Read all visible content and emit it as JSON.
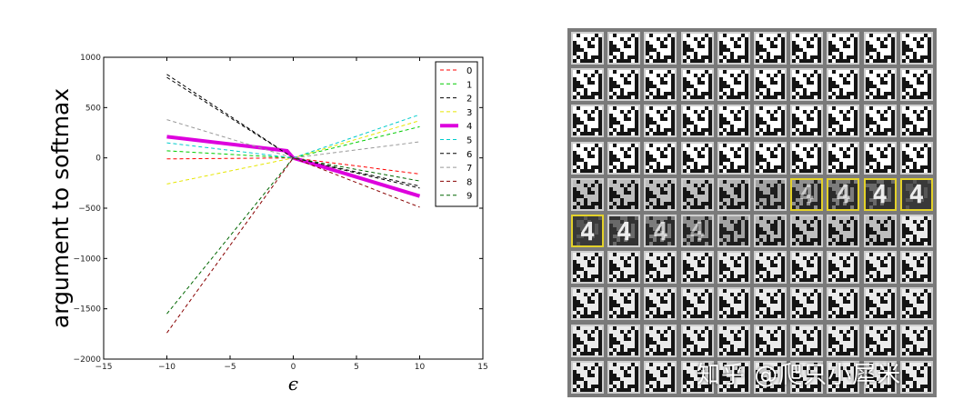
{
  "chart_data": {
    "type": "line",
    "xlabel": "ϵ",
    "ylabel": "argument to softmax",
    "xlim": [
      -15,
      15
    ],
    "ylim": [
      -2000,
      1000
    ],
    "xticks": [
      "−15",
      "−10",
      "−5",
      "0",
      "5",
      "10",
      "15"
    ],
    "yticks": [
      "1000",
      "500",
      "0",
      "−500",
      "−1000",
      "−1500",
      "−2000"
    ],
    "legend_placement": "top-right",
    "series": [
      {
        "name": "0",
        "color": "#ff0000",
        "x": [
          -10,
          0,
          10
        ],
        "y": [
          -10,
          0,
          -160
        ]
      },
      {
        "name": "1",
        "color": "#00cc00",
        "x": [
          -10,
          0,
          10
        ],
        "y": [
          70,
          0,
          310
        ]
      },
      {
        "name": "2",
        "color": "#000000",
        "x": [
          -10,
          0,
          10
        ],
        "y": [
          830,
          0,
          -300
        ]
      },
      {
        "name": "3",
        "color": "#e6e600",
        "x": [
          -10,
          0,
          10
        ],
        "y": [
          -260,
          0,
          370
        ]
      },
      {
        "name": "4",
        "color": "#dd00dd",
        "x": [
          -10,
          -0.5,
          0,
          10
        ],
        "y": [
          210,
          70,
          0,
          -380
        ]
      },
      {
        "name": "5",
        "color": "#00cccc",
        "x": [
          -10,
          0,
          10
        ],
        "y": [
          150,
          0,
          430
        ]
      },
      {
        "name": "6",
        "color": "#000000",
        "x": [
          -10,
          0,
          10
        ],
        "y": [
          800,
          0,
          -280
        ]
      },
      {
        "name": "7",
        "color": "#999999",
        "x": [
          -10,
          0,
          10
        ],
        "y": [
          380,
          0,
          160
        ]
      },
      {
        "name": "8",
        "color": "#880000",
        "x": [
          -10,
          0,
          10
        ],
        "y": [
          -1740,
          0,
          -490
        ]
      },
      {
        "name": "9",
        "color": "#006600",
        "x": [
          -10,
          0,
          10
        ],
        "y": [
          -1550,
          0,
          -230
        ]
      }
    ]
  },
  "image_grid": {
    "rows": 10,
    "cols": 10,
    "highlighted_cells": [
      [
        4,
        6
      ],
      [
        4,
        7
      ],
      [
        4,
        8
      ],
      [
        4,
        9
      ],
      [
        5,
        0
      ]
    ],
    "watermark": "知乎 @爬只小犀米"
  }
}
